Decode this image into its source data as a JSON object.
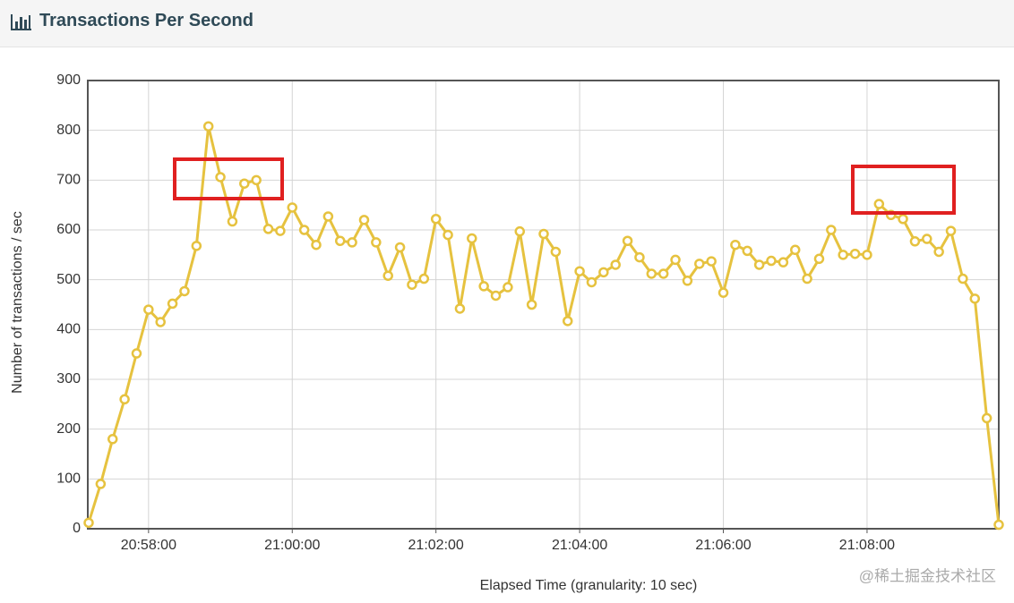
{
  "header": {
    "title": "Transactions Per Second"
  },
  "chart_data": {
    "type": "line",
    "x": [
      "20:57:10",
      "20:57:20",
      "20:57:30",
      "20:57:40",
      "20:57:50",
      "20:58:00",
      "20:58:10",
      "20:58:20",
      "20:58:30",
      "20:58:40",
      "20:58:50",
      "20:59:00",
      "20:59:10",
      "20:59:20",
      "20:59:30",
      "20:59:40",
      "20:59:50",
      "21:00:00",
      "21:00:10",
      "21:00:20",
      "21:00:30",
      "21:00:40",
      "21:00:50",
      "21:01:00",
      "21:01:10",
      "21:01:20",
      "21:01:30",
      "21:01:40",
      "21:01:50",
      "21:02:00",
      "21:02:10",
      "21:02:20",
      "21:02:30",
      "21:02:40",
      "21:02:50",
      "21:03:00",
      "21:03:10",
      "21:03:20",
      "21:03:30",
      "21:03:40",
      "21:03:50",
      "21:04:00",
      "21:04:10",
      "21:04:20",
      "21:04:30",
      "21:04:40",
      "21:04:50",
      "21:05:00",
      "21:05:10",
      "21:05:20",
      "21:05:30",
      "21:05:40",
      "21:05:50",
      "21:06:00",
      "21:06:10",
      "21:06:20",
      "21:06:30",
      "21:06:40",
      "21:06:50",
      "21:07:00",
      "21:07:10",
      "21:07:20",
      "21:07:30",
      "21:07:40",
      "21:07:50",
      "21:08:00",
      "21:08:10",
      "21:08:20",
      "21:08:30",
      "21:08:40",
      "21:08:50",
      "21:09:00",
      "21:09:10",
      "21:09:20",
      "21:09:30",
      "21:09:40",
      "21:09:50"
    ],
    "values": [
      12,
      90,
      180,
      260,
      352,
      440,
      415,
      452,
      477,
      568,
      808,
      706,
      617,
      693,
      700,
      602,
      598,
      645,
      600,
      570,
      627,
      578,
      575,
      620,
      575,
      508,
      565,
      490,
      502,
      622,
      590,
      442,
      583,
      487,
      468,
      485,
      597,
      450,
      592,
      556,
      417,
      517,
      495,
      515,
      530,
      578,
      545,
      512,
      512,
      540,
      498,
      532,
      537,
      474,
      570,
      558,
      530,
      538,
      535,
      560,
      502,
      542,
      600,
      550,
      552,
      550,
      652,
      630,
      622,
      577,
      582,
      556,
      598,
      502,
      462,
      222,
      8
    ],
    "color": "#e6c23f",
    "x_label": "Elapsed Time (granularity: 10 sec)",
    "y_label": "Number of transactions / sec",
    "xlim": [
      "20:57:10",
      "21:09:50"
    ],
    "xticks": [
      "20:58:00",
      "21:00:00",
      "21:02:00",
      "21:04:00",
      "21:06:00",
      "21:08:00"
    ],
    "ylim": [
      0,
      900
    ],
    "yticks": [
      0,
      100,
      200,
      300,
      400,
      500,
      600,
      700,
      800,
      900
    ],
    "grid": true
  },
  "watermark": "@稀土掘金技术社区"
}
